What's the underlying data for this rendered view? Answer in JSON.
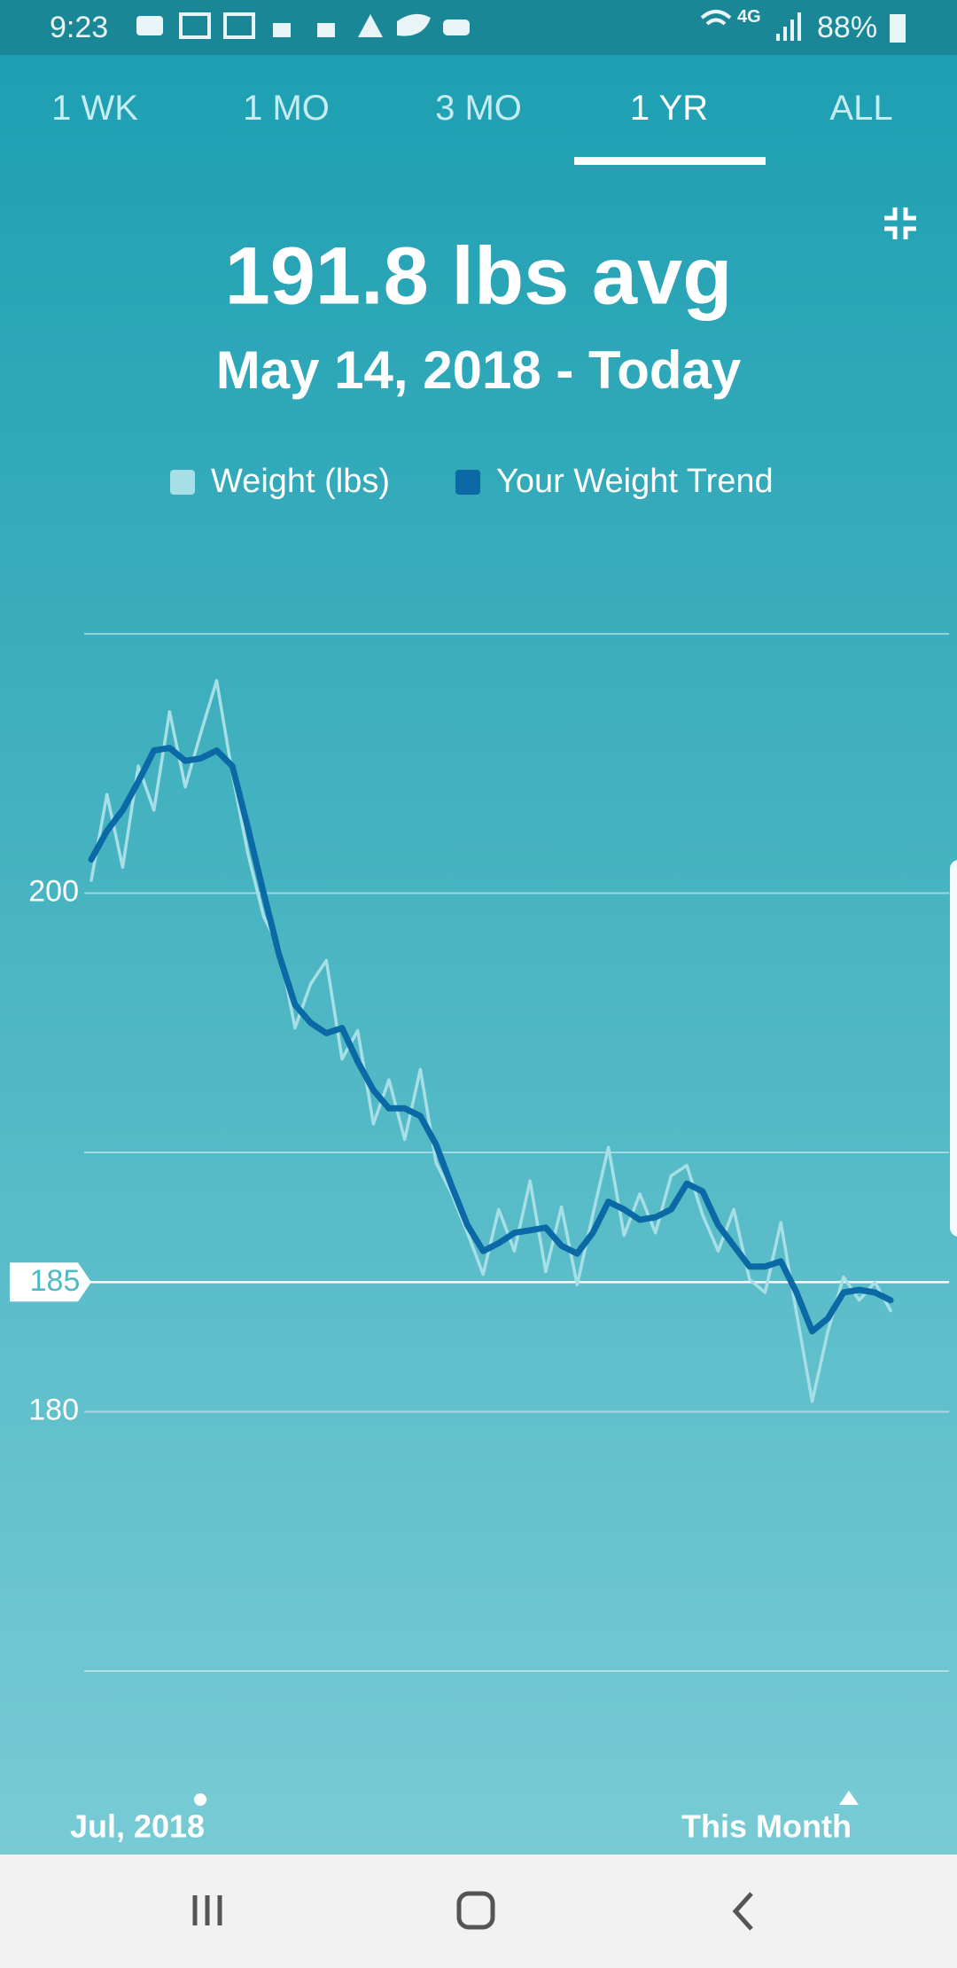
{
  "status_bar": {
    "time": "9:23",
    "network": "4G",
    "battery": "88%"
  },
  "tabs": [
    "1 WK",
    "1 MO",
    "3 MO",
    "1 YR",
    "ALL"
  ],
  "selected_tab": 3,
  "chart_data": {
    "type": "line",
    "title": "191.8 lbs avg",
    "subtitle": "May 14, 2018 - Today",
    "x_labels": [
      "Jul, 2018",
      "This Month"
    ],
    "series": [
      {
        "name": "Weight (lbs)",
        "color": "#a6dfe6",
        "values": [
          200.5,
          203.8,
          201.0,
          204.9,
          203.2,
          207.0,
          204.1,
          206.2,
          208.2,
          204.6,
          201.5,
          199.1,
          197.9,
          194.8,
          196.5,
          197.4,
          193.6,
          194.7,
          191.1,
          192.8,
          190.5,
          193.2,
          189.6,
          188.4,
          186.9,
          185.3,
          187.8,
          186.2,
          188.9,
          185.4,
          187.9,
          184.9,
          187.6,
          190.2,
          186.8,
          188.4,
          186.9,
          189.1,
          189.5,
          187.6,
          186.2,
          187.8,
          185.1,
          184.6,
          187.3,
          183.8,
          180.4,
          183.1,
          185.2,
          184.3,
          185.0,
          183.9
        ]
      },
      {
        "name": "Your Weight Trend",
        "color": "#0b6aa6",
        "values": [
          201.3,
          202.4,
          203.2,
          204.3,
          205.5,
          205.6,
          205.1,
          205.2,
          205.5,
          204.9,
          202.5,
          200.0,
          197.6,
          195.7,
          195.0,
          194.6,
          194.8,
          193.5,
          192.4,
          191.7,
          191.7,
          191.4,
          190.3,
          188.7,
          187.2,
          186.2,
          186.5,
          186.9,
          187.0,
          187.1,
          186.4,
          186.1,
          186.9,
          188.1,
          187.8,
          187.4,
          187.5,
          187.8,
          188.8,
          188.5,
          187.2,
          186.4,
          185.6,
          185.6,
          185.8,
          184.6,
          183.1,
          183.6,
          184.6,
          184.7,
          184.6,
          184.3
        ]
      }
    ],
    "ylim": [
      170,
      210
    ],
    "yticks": [
      180,
      200
    ],
    "gridlines": [
      170,
      190,
      210
    ],
    "highlight": 185,
    "grid": true
  }
}
